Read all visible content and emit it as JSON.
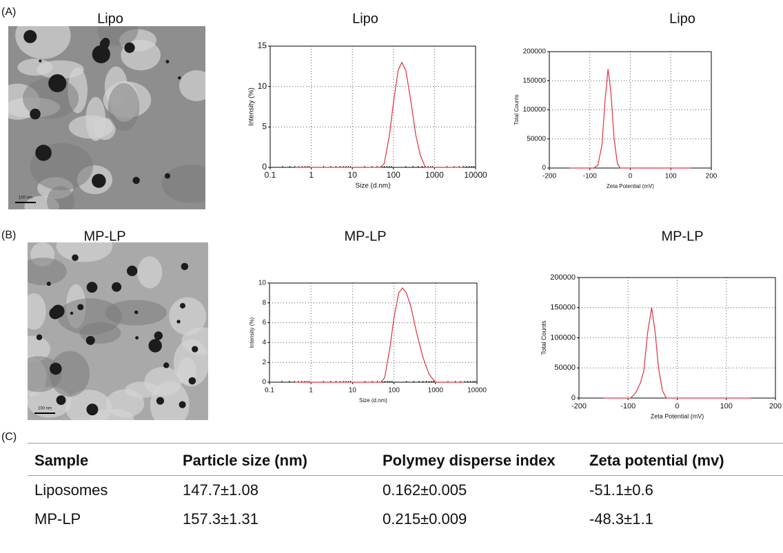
{
  "panel_labels": [
    "(A)",
    "(B)",
    "(C)"
  ],
  "images": [
    {
      "title": "Lipo",
      "scale_label": "100 nm"
    },
    {
      "title": "MP-LP",
      "scale_label": "100 nm"
    }
  ],
  "chart_data": [
    {
      "type": "line",
      "title": "Lipo",
      "x_label": "Size (d.nm)",
      "y_label": "Intensity (%)",
      "x_scale": "log",
      "x": [
        0.4,
        50,
        60,
        80,
        100,
        130,
        160,
        200,
        260,
        350,
        450,
        600,
        5000
      ],
      "values": [
        0,
        0,
        0.5,
        4,
        8,
        12,
        13,
        12,
        8.5,
        4,
        1.5,
        0,
        0
      ],
      "color": "#e0303a",
      "xlim": [
        0.1,
        10000
      ],
      "xticks": [
        0.1,
        1,
        10,
        100,
        1000,
        10000
      ],
      "ylim": [
        0,
        15
      ],
      "yticks": [
        0,
        5,
        10,
        15
      ],
      "grid": true
    },
    {
      "type": "line",
      "title": "Lipo",
      "x_label": "Zeta Potential (mV)",
      "y_label": "Total Counts",
      "x_scale": "linear",
      "x": [
        -150,
        -90,
        -80,
        -70,
        -62,
        -55,
        -48,
        -40,
        -32,
        -25,
        150
      ],
      "values": [
        0,
        0,
        5000,
        40000,
        120000,
        170000,
        130000,
        50000,
        8000,
        0,
        0
      ],
      "color": "#e0303a",
      "xlim": [
        -200,
        200
      ],
      "xticks": [
        -200,
        -100,
        0,
        100,
        200
      ],
      "ylim": [
        0,
        200000
      ],
      "yticks": [
        0,
        50000,
        100000,
        150000,
        200000
      ],
      "grid": true
    },
    {
      "type": "line",
      "title": "MP-LP",
      "x_label": "Size (d.nm)",
      "y_label": "Intensity (%)",
      "x_scale": "log",
      "x": [
        0.4,
        50,
        60,
        80,
        100,
        130,
        160,
        200,
        260,
        350,
        500,
        700,
        1000,
        5000
      ],
      "values": [
        0,
        0,
        0.5,
        3.5,
        6.5,
        9,
        9.5,
        9,
        7.5,
        5,
        2.5,
        0.8,
        0,
        0
      ],
      "color": "#e0303a",
      "xlim": [
        0.1,
        10000
      ],
      "xticks": [
        0.1,
        1,
        10,
        100,
        1000,
        10000
      ],
      "ylim": [
        0,
        10
      ],
      "yticks": [
        0,
        2,
        4,
        6,
        8,
        10
      ],
      "grid": true
    },
    {
      "type": "line",
      "title": "MP-LP",
      "x_label": "Zeta Potential (mV)",
      "y_label": "Total Counts",
      "x_scale": "linear",
      "x": [
        -150,
        -95,
        -85,
        -75,
        -68,
        -60,
        -52,
        -45,
        -38,
        -30,
        -22,
        150
      ],
      "values": [
        0,
        0,
        8000,
        25000,
        45000,
        110000,
        150000,
        110000,
        50000,
        12000,
        0,
        0
      ],
      "color": "#e0303a",
      "xlim": [
        -200,
        200
      ],
      "xticks": [
        -200,
        -100,
        0,
        100,
        200
      ],
      "ylim": [
        0,
        200000
      ],
      "yticks": [
        0,
        50000,
        100000,
        150000,
        200000
      ],
      "grid": true
    }
  ],
  "table": {
    "header": [
      "Sample",
      "Particle size (nm)",
      "Polymey disperse index",
      "Zeta potential (mv)"
    ],
    "rows": [
      [
        "Liposomes",
        "147.7±1.08",
        "0.162±0.005",
        "-51.1±0.6"
      ],
      [
        "MP-LP",
        "157.3±1.31",
        "0.215±0.009",
        "-48.3±1.1"
      ]
    ]
  }
}
